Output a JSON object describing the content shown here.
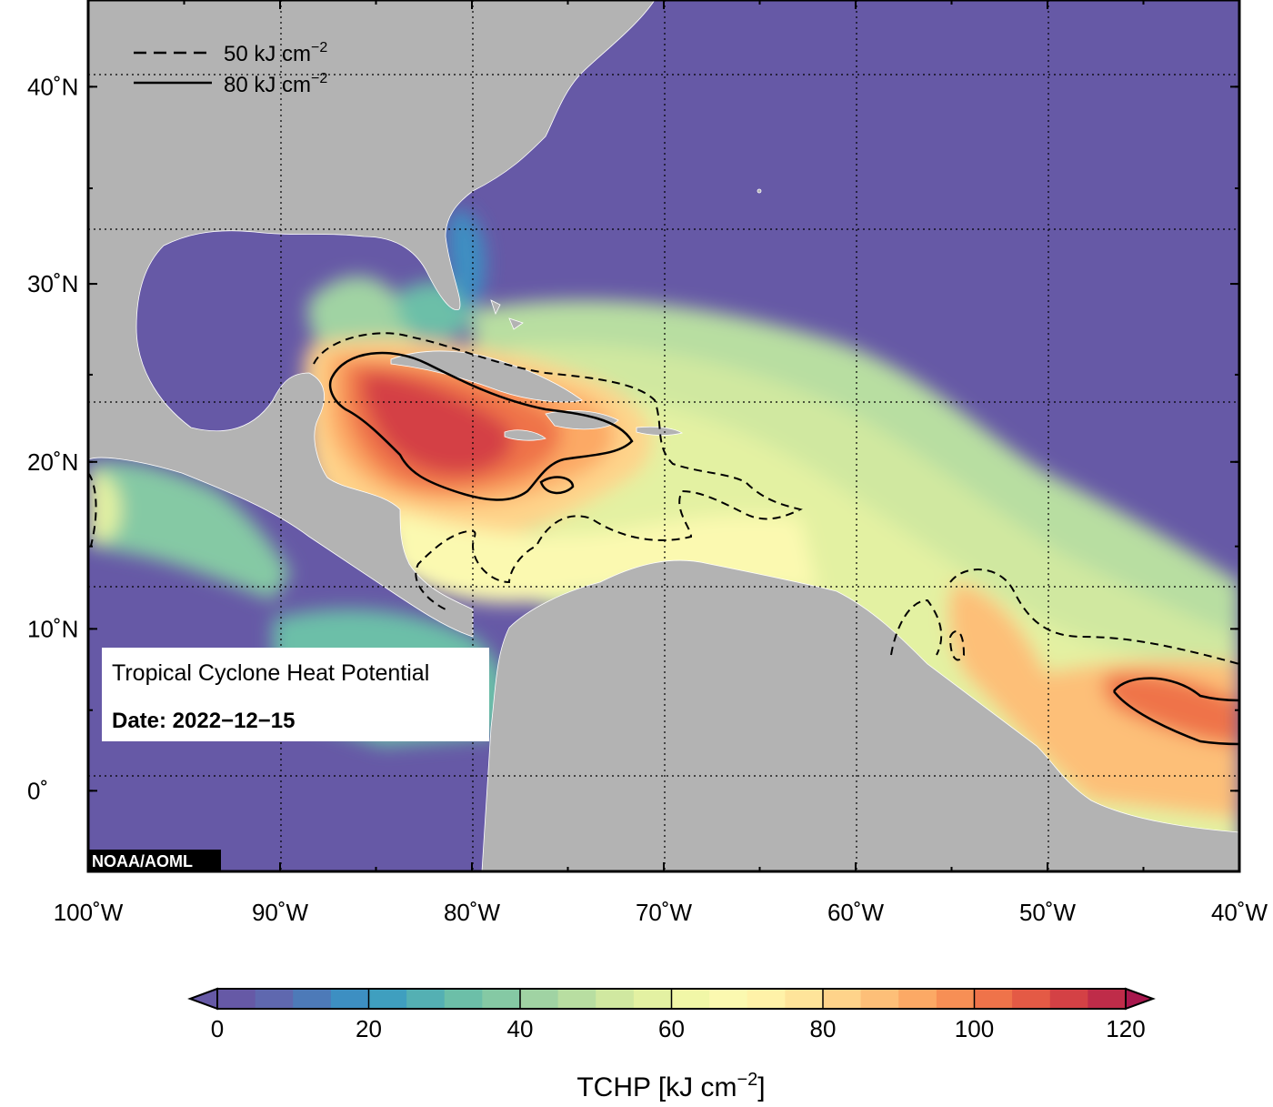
{
  "map": {
    "title": "Tropical Cyclone Heat Potential",
    "date_label": "Date: 2022−12−15",
    "credit": "NOAA/AOML",
    "lon_range": [
      -100,
      -40
    ],
    "lat_range": [
      -5,
      44
    ],
    "lat_ticks": [
      {
        "value": 40,
        "label": "40˚N"
      },
      {
        "value": 30,
        "label": "30˚N"
      },
      {
        "value": 20,
        "label": "20˚N"
      },
      {
        "value": 10,
        "label": "10˚N"
      },
      {
        "value": 0,
        "label": "0˚"
      }
    ],
    "lon_ticks": [
      {
        "value": -100,
        "label": "100˚W"
      },
      {
        "value": -90,
        "label": "90˚W"
      },
      {
        "value": -80,
        "label": "80˚W"
      },
      {
        "value": -70,
        "label": "70˚W"
      },
      {
        "value": -60,
        "label": "60˚W"
      },
      {
        "value": -50,
        "label": "50˚W"
      },
      {
        "value": -40,
        "label": "40˚W"
      }
    ],
    "contour_legend": {
      "dashed": {
        "value": "50 kJ cm",
        "exp": "−2"
      },
      "solid": {
        "value": "80 kJ cm",
        "exp": "−2"
      }
    },
    "colors": {
      "land": "#b3b3b3",
      "cold_ocean": "#6659a6"
    }
  },
  "colorbar": {
    "min": 0,
    "max": 120,
    "step": 5,
    "ticks": [
      {
        "value": 0,
        "label": "0"
      },
      {
        "value": 20,
        "label": "20"
      },
      {
        "value": 40,
        "label": "40"
      },
      {
        "value": 60,
        "label": "60"
      },
      {
        "value": 80,
        "label": "80"
      },
      {
        "value": 100,
        "label": "100"
      },
      {
        "value": 120,
        "label": "120"
      }
    ],
    "title_prefix": "TCHP [kJ cm",
    "title_exp": "−2",
    "title_suffix": "]",
    "colors": [
      "#6659a6",
      "#5f68af",
      "#4d7ab8",
      "#3d8fc2",
      "#3f9fbf",
      "#54b0b3",
      "#6cbfa8",
      "#85c9a4",
      "#a0d3a3",
      "#b8dea1",
      "#d0e8a0",
      "#e3f1a2",
      "#f1f7a7",
      "#fbf9b0",
      "#fff2a8",
      "#fee49a",
      "#fed38a",
      "#fdbf78",
      "#fca965",
      "#f78f55",
      "#ef734a",
      "#e45a45",
      "#d44145",
      "#bf2c49",
      "#a8174d"
    ]
  }
}
